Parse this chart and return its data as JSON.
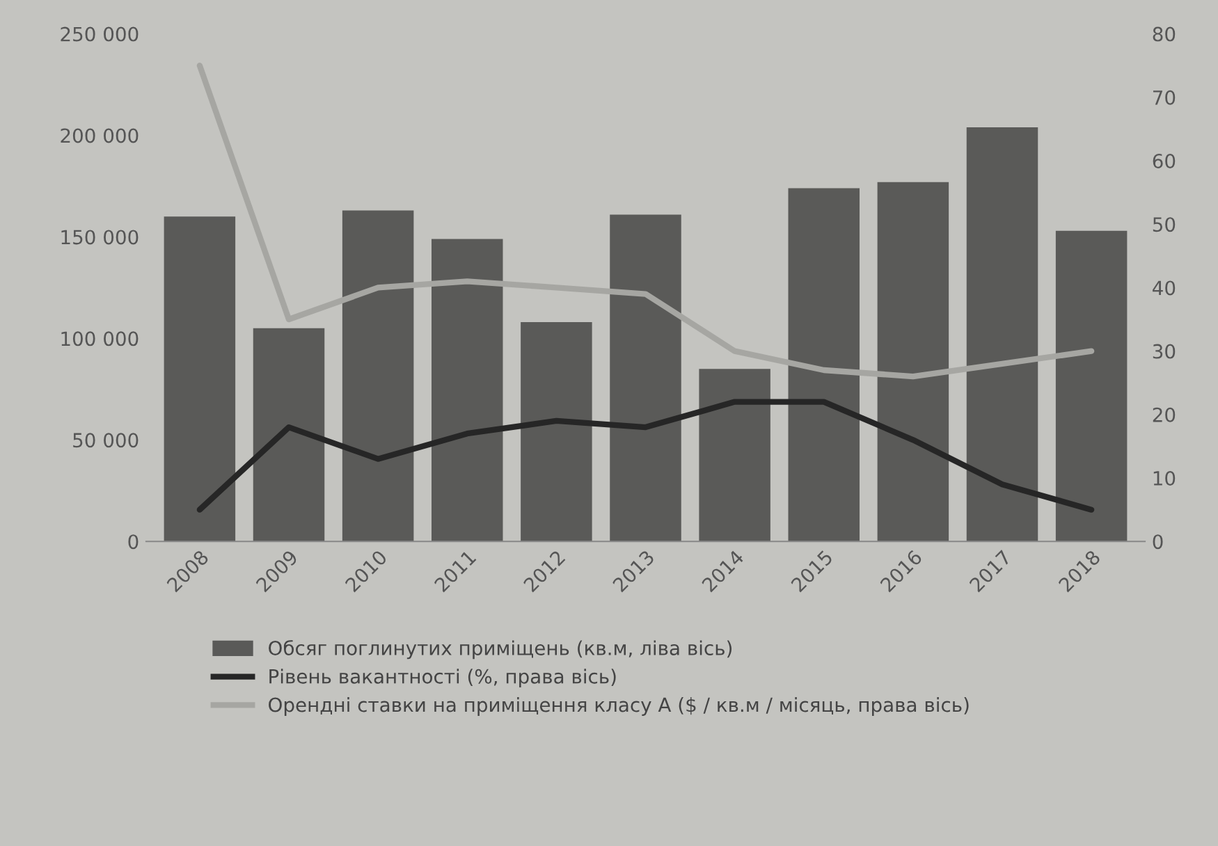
{
  "chart_data": {
    "type": "bar",
    "categories": [
      "2008",
      "2009",
      "2010",
      "2011",
      "2012",
      "2013",
      "2014",
      "2015",
      "2016",
      "2017",
      "2018"
    ],
    "series": [
      {
        "name": "Обсяг поглинутих приміщень (кв.м, ліва вісь)",
        "color": "#5a5a58",
        "values": [
          160000,
          105000,
          163000,
          149000,
          108000,
          161000,
          85000,
          174000,
          177000,
          204000,
          153000
        ]
      },
      {
        "name": "Рівень вакантності (%, права вісь)",
        "type": "line",
        "axis": "y2",
        "color": "#262626",
        "values": [
          5,
          18,
          13,
          17,
          19,
          18,
          22,
          22,
          16,
          9,
          5
        ]
      },
      {
        "name": "Орендні ставки на приміщення класу А ($ / кв.м / місяць, права вісь)",
        "type": "line",
        "axis": "y2",
        "color": "#a6a6a2",
        "values": [
          75,
          35,
          40,
          41,
          40,
          39,
          30,
          27,
          26,
          28,
          30
        ]
      }
    ],
    "ylim": [
      0,
      250000
    ],
    "yticks": [
      0,
      {
        "value": 50000,
        "label": "50 000"
      },
      {
        "value": 100000,
        "label": "100 000"
      },
      {
        "value": 150000,
        "label": "150 000"
      },
      {
        "value": 200000,
        "label": "200 000"
      },
      {
        "value": 250000,
        "label": "250 000"
      }
    ],
    "y2lim": [
      0,
      80
    ],
    "y2ticks": [
      0,
      10,
      20,
      30,
      40,
      50,
      60,
      70,
      80
    ],
    "legend": "bottom",
    "line_style": "solid"
  }
}
